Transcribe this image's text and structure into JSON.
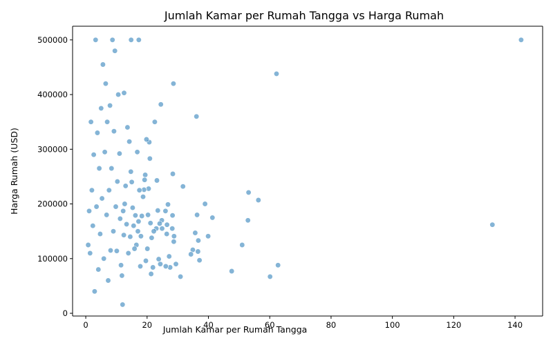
{
  "chart_data": {
    "type": "scatter",
    "title": "Jumlah Kamar per Rumah Tangga vs Harga Rumah",
    "xlabel": "Jumlah Kamar per Rumah Tangga",
    "ylabel": "Harga Rumah (USD)",
    "xlim": [
      -4.3,
      149
    ],
    "ylim": [
      -5000,
      525000
    ],
    "x_ticks": [
      0,
      20,
      40,
      60,
      80,
      100,
      120,
      140
    ],
    "y_ticks": [
      0,
      100000,
      200000,
      300000,
      400000,
      500000
    ],
    "grid": false,
    "legend": "none",
    "point_color": "#1f77b4",
    "point_opacity": 0.55,
    "series": [
      {
        "x": [
          142.0,
          132.6,
          62.2,
          62.7,
          60.1,
          56.3,
          53.1,
          52.9,
          51.0,
          47.6,
          41.3,
          39.9,
          38.9,
          37.1,
          36.7,
          36.6,
          36.3,
          36.1,
          35.7,
          34.9,
          34.3,
          31.7,
          30.9,
          29.4,
          28.8,
          28.7,
          28.6,
          28.4,
          28.3,
          28.2,
          27.5,
          27.2,
          26.8,
          26.5,
          26.4,
          26.1,
          26.0,
          24.9,
          24.8,
          24.5,
          24.3,
          24.1,
          23.8,
          23.5,
          23.2,
          23.0,
          22.5,
          22.2,
          21.9,
          21.5,
          21.3,
          21.1,
          20.9,
          20.7,
          20.5,
          20.3,
          20.1,
          19.8,
          19.6,
          19.4,
          19.2,
          19.0,
          18.7,
          18.3,
          18.0,
          17.8,
          17.5,
          17.2,
          17.0,
          16.8,
          16.5,
          16.2,
          15.9,
          15.6,
          15.3,
          15.0,
          14.7,
          14.5,
          14.2,
          13.9,
          13.6,
          13.3,
          13.0,
          12.7,
          12.4,
          12.2,
          12.0,
          11.8,
          11.5,
          11.2,
          17.3,
          14.8,
          12.5,
          11.0,
          10.6,
          10.3,
          10.1,
          9.8,
          9.5,
          9.2,
          9.0,
          8.7,
          8.4,
          8.1,
          7.9,
          7.6,
          7.3,
          7.0,
          6.8,
          6.5,
          6.2,
          5.9,
          5.6,
          5.3,
          5.0,
          4.7,
          4.4,
          4.1,
          3.8,
          3.5,
          3.2,
          2.9,
          2.6,
          2.3,
          2.0,
          1.7,
          1.4,
          1.1,
          0.8
        ],
        "y": [
          500000,
          162000,
          438000,
          88000,
          67000,
          207000,
          221000,
          170000,
          125000,
          77000,
          175000,
          141000,
          200000,
          97000,
          133000,
          113000,
          180000,
          360000,
          147000,
          116000,
          108000,
          232000,
          67000,
          90000,
          141000,
          131000,
          420000,
          255000,
          179000,
          155000,
          84000,
          104000,
          199000,
          162000,
          145000,
          86000,
          187000,
          155000,
          170000,
          382000,
          90000,
          164000,
          99000,
          188000,
          243000,
          155000,
          350000,
          150000,
          84000,
          138000,
          72000,
          165000,
          283000,
          313000,
          228000,
          180000,
          118000,
          318000,
          96000,
          253000,
          244000,
          226000,
          213000,
          178000,
          141000,
          86000,
          225000,
          168000,
          150000,
          295000,
          125000,
          179000,
          118000,
          160000,
          193000,
          240000,
          259000,
          140000,
          314000,
          110000,
          340000,
          163000,
          233000,
          200000,
          143000,
          187000,
          16000,
          69000,
          88000,
          173000,
          500000,
          500000,
          403000,
          292000,
          400000,
          241000,
          114000,
          195000,
          480000,
          333000,
          150000,
          500000,
          265000,
          115000,
          380000,
          225000,
          60000,
          350000,
          180000,
          420000,
          295000,
          100000,
          455000,
          210000,
          375000,
          145000,
          265000,
          80000,
          330000,
          195000,
          500000,
          40000,
          290000,
          160000,
          225000,
          350000,
          110000,
          187000,
          125000
        ]
      }
    ]
  }
}
